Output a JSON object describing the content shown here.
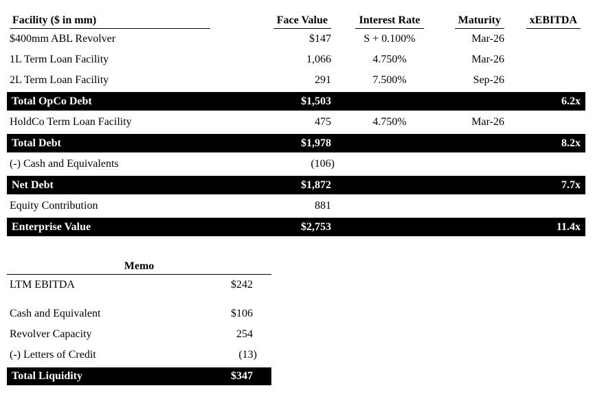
{
  "cap_table": {
    "columns": [
      "Facility ($ in mm)",
      "Face Value",
      "Interest Rate",
      "Maturity",
      "xEBITDA"
    ],
    "rows": [
      {
        "type": "item",
        "facility": "$400mm ABL Revolver",
        "face_value": "$147",
        "interest_rate": "S + 0.100%",
        "maturity": "Mar-26",
        "xebitda": ""
      },
      {
        "type": "item",
        "facility": "1L Term Loan Facility",
        "face_value": "1,066",
        "interest_rate": "4.750%",
        "maturity": "Mar-26",
        "xebitda": ""
      },
      {
        "type": "item",
        "facility": "2L Term Loan Facility",
        "face_value": "291",
        "interest_rate": "7.500%",
        "maturity": "Sep-26",
        "xebitda": ""
      },
      {
        "type": "total",
        "facility": "Total OpCo Debt",
        "face_value": "$1,503",
        "interest_rate": "",
        "maturity": "",
        "xebitda": "6.2x"
      },
      {
        "type": "item",
        "facility": "HoldCo Term Loan Facility",
        "face_value": "475",
        "interest_rate": "4.750%",
        "maturity": "Mar-26",
        "xebitda": ""
      },
      {
        "type": "total",
        "facility": "Total Debt",
        "face_value": "$1,978",
        "interest_rate": "",
        "maturity": "",
        "xebitda": "8.2x"
      },
      {
        "type": "item",
        "facility": "(-) Cash and Equivalents",
        "face_value": "(106)",
        "interest_rate": "",
        "maturity": "",
        "xebitda": ""
      },
      {
        "type": "total",
        "facility": "Net Debt",
        "face_value": "$1,872",
        "interest_rate": "",
        "maturity": "",
        "xebitda": "7.7x"
      },
      {
        "type": "item",
        "facility": "Equity Contribution",
        "face_value": "881",
        "interest_rate": "",
        "maturity": "",
        "xebitda": ""
      },
      {
        "type": "total",
        "facility": "Enterprise Value",
        "face_value": "$2,753",
        "interest_rate": "",
        "maturity": "",
        "xebitda": "11.4x"
      }
    ]
  },
  "memo": {
    "title": "Memo",
    "rows": [
      {
        "type": "item",
        "label": "LTM EBITDA",
        "value": "$242"
      },
      {
        "type": "item",
        "label": "Cash and Equivalent",
        "value": "$106"
      },
      {
        "type": "item",
        "label": "Revolver Capacity",
        "value": "254"
      },
      {
        "type": "item",
        "label": "(-) Letters of Credit",
        "value": "(13)"
      },
      {
        "type": "total",
        "label": "Total Liquidity",
        "value": "$347"
      }
    ]
  },
  "colors": {
    "text": "#000000",
    "background": "#ffffff",
    "total_bar_bg": "#000000",
    "total_bar_text": "#ffffff"
  }
}
